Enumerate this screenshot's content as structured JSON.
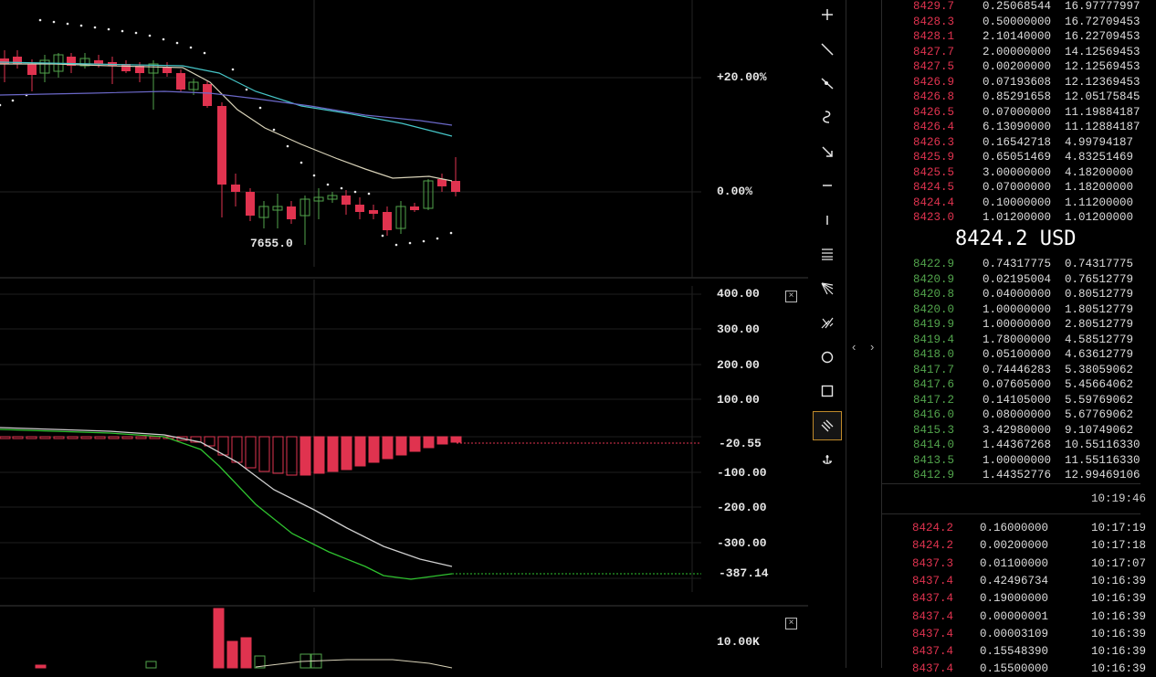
{
  "chart": {
    "main_axis": [
      "+20.00%",
      "0.00%"
    ],
    "low_label": "7655.0",
    "macd_axis": [
      "400.00",
      "300.00",
      "200.00",
      "100.00",
      "-20.55",
      "-100.00",
      "-200.00",
      "-300.00",
      "-387.14"
    ],
    "volume_axis": [
      "10.00K"
    ],
    "close_symbol": "×",
    "colors": {
      "up": "#52a44c",
      "down": "#e0334f",
      "ma_fast": "#d8d2b8",
      "ma_mid": "#46c6c8",
      "ma_slow": "#6b68c8",
      "macd_line": "#cfcfcf",
      "signal_line": "#2fc22f"
    }
  },
  "toolbar": {
    "tools": [
      "crosshair-icon",
      "trend-line-icon",
      "ray-icon",
      "brush-icon",
      "arrow-icon",
      "horizontal-line-icon",
      "vertical-line-icon",
      "parallel-channel-icon",
      "fib-fan-icon",
      "pitchfork-icon",
      "circle-icon",
      "rectangle-icon",
      "parallel-lines-icon",
      "anchor-icon"
    ],
    "active": "parallel-lines-icon"
  },
  "collapse": {
    "left": "‹",
    "right": "›"
  },
  "orderbook": {
    "asks": [
      {
        "price": "8429.7",
        "amount": "0.25068544",
        "total": "16.97777997"
      },
      {
        "price": "8428.3",
        "amount": "0.50000000",
        "total": "16.72709453"
      },
      {
        "price": "8428.1",
        "amount": "2.10140000",
        "total": "16.22709453"
      },
      {
        "price": "8427.7",
        "amount": "2.00000000",
        "total": "14.12569453"
      },
      {
        "price": "8427.5",
        "amount": "0.00200000",
        "total": "12.12569453"
      },
      {
        "price": "8426.9",
        "amount": "0.07193608",
        "total": "12.12369453"
      },
      {
        "price": "8426.8",
        "amount": "0.85291658",
        "total": "12.05175845"
      },
      {
        "price": "8426.5",
        "amount": "0.07000000",
        "total": "11.19884187"
      },
      {
        "price": "8426.4",
        "amount": "6.13090000",
        "total": "11.12884187"
      },
      {
        "price": "8426.3",
        "amount": "0.16542718",
        "total": "4.99794187"
      },
      {
        "price": "8425.9",
        "amount": "0.65051469",
        "total": "4.83251469"
      },
      {
        "price": "8425.5",
        "amount": "3.00000000",
        "total": "4.18200000"
      },
      {
        "price": "8424.5",
        "amount": "0.07000000",
        "total": "1.18200000"
      },
      {
        "price": "8424.4",
        "amount": "0.10000000",
        "total": "1.11200000"
      },
      {
        "price": "8423.0",
        "amount": "1.01200000",
        "total": "1.01200000"
      }
    ],
    "mid_price": "8424.2 USD",
    "bids": [
      {
        "price": "8422.9",
        "amount": "0.74317775",
        "total": "0.74317775"
      },
      {
        "price": "8420.9",
        "amount": "0.02195004",
        "total": "0.76512779"
      },
      {
        "price": "8420.8",
        "amount": "0.04000000",
        "total": "0.80512779"
      },
      {
        "price": "8420.0",
        "amount": "1.00000000",
        "total": "1.80512779"
      },
      {
        "price": "8419.9",
        "amount": "1.00000000",
        "total": "2.80512779"
      },
      {
        "price": "8419.4",
        "amount": "1.78000000",
        "total": "4.58512779"
      },
      {
        "price": "8418.0",
        "amount": "0.05100000",
        "total": "4.63612779"
      },
      {
        "price": "8417.7",
        "amount": "0.74446283",
        "total": "5.38059062"
      },
      {
        "price": "8417.6",
        "amount": "0.07605000",
        "total": "5.45664062"
      },
      {
        "price": "8417.2",
        "amount": "0.14105000",
        "total": "5.59769062"
      },
      {
        "price": "8416.0",
        "amount": "0.08000000",
        "total": "5.67769062"
      },
      {
        "price": "8415.3",
        "amount": "3.42980000",
        "total": "9.10749062"
      },
      {
        "price": "8414.0",
        "amount": "1.44367268",
        "total": "10.55116330"
      },
      {
        "price": "8413.5",
        "amount": "1.00000000",
        "total": "11.55116330"
      },
      {
        "price": "8412.9",
        "amount": "1.44352776",
        "total": "12.99469106"
      }
    ],
    "time": "10:19:46",
    "trades": [
      {
        "price": "8424.2",
        "amount": "0.16000000",
        "time": "10:17:19"
      },
      {
        "price": "8424.2",
        "amount": "0.00200000",
        "time": "10:17:18"
      },
      {
        "price": "8437.3",
        "amount": "0.01100000",
        "time": "10:17:07"
      },
      {
        "price": "8437.4",
        "amount": "0.42496734",
        "time": "10:16:39"
      },
      {
        "price": "8437.4",
        "amount": "0.19000000",
        "time": "10:16:39"
      },
      {
        "price": "8437.4",
        "amount": "0.00000001",
        "time": "10:16:39"
      },
      {
        "price": "8437.4",
        "amount": "0.00003109",
        "time": "10:16:39"
      },
      {
        "price": "8437.4",
        "amount": "0.15548390",
        "time": "10:16:39"
      },
      {
        "price": "8437.4",
        "amount": "0.15500000",
        "time": "10:16:39"
      }
    ]
  }
}
